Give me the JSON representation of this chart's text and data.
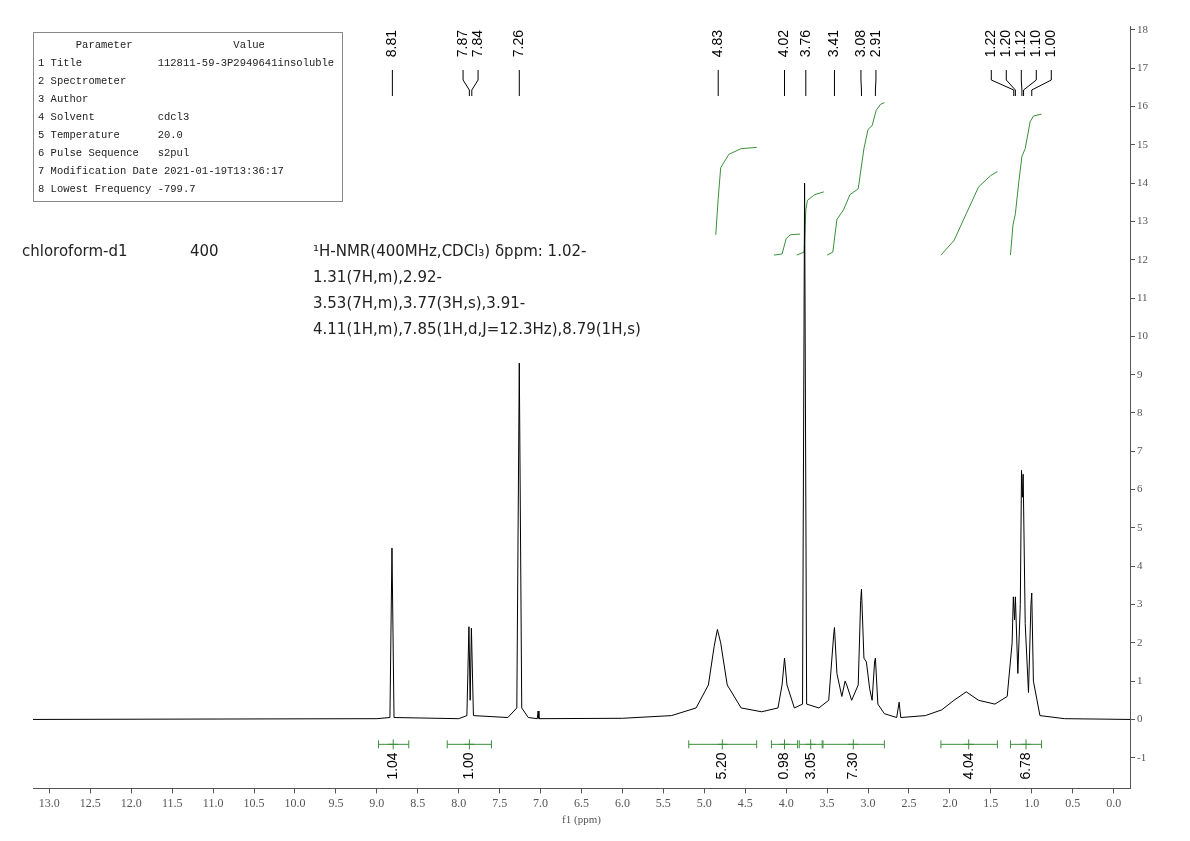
{
  "chart_data": {
    "type": "line",
    "xlabel": "f1 (ppm)",
    "xlim": [
      13.2,
      -0.2
    ],
    "xticks": [
      {
        "value": 13,
        "label": "13.0"
      },
      12.5,
      {
        "value": 12,
        "label": "12.0"
      },
      11.5,
      {
        "value": 11,
        "label": "11.0"
      },
      10.5,
      {
        "value": 10,
        "label": "10.0"
      },
      9.5,
      {
        "value": 9,
        "label": "9.0"
      },
      8.5,
      {
        "value": 8,
        "label": "8.0"
      },
      7.5,
      {
        "value": 7,
        "label": "7.0"
      },
      6.5,
      {
        "value": 6,
        "label": "6.0"
      },
      5.5,
      {
        "value": 5,
        "label": "5.0"
      },
      4.5,
      {
        "value": 4,
        "label": "4.0"
      },
      3.5,
      {
        "value": 3,
        "label": "3.0"
      },
      2.5,
      {
        "value": 2,
        "label": "2.0"
      },
      1.5,
      {
        "value": 1,
        "label": "1.0"
      },
      0.5,
      {
        "value": 0,
        "label": "0.0"
      }
    ],
    "ylim": [
      -1.8,
      18.1
    ],
    "yticks": [
      -1,
      0,
      1,
      2,
      3,
      4,
      5,
      6,
      7,
      8,
      9,
      10,
      11,
      12,
      13,
      14,
      15,
      16,
      17,
      18
    ],
    "grid": false,
    "legend": false,
    "marker": "none",
    "line_style": "solid",
    "series": [
      {
        "color": "#000000",
        "x": [
          13.2,
          9.0,
          8.84,
          8.815,
          8.79,
          8.0,
          7.9,
          7.875,
          7.86,
          7.845,
          7.82,
          7.4,
          7.29,
          7.26,
          7.23,
          7.15,
          7.04,
          7.03,
          7.02,
          6.0,
          5.4,
          5.1,
          4.95,
          4.88,
          4.84,
          4.8,
          4.72,
          4.55,
          4.3,
          4.1,
          4.05,
          4.02,
          3.99,
          3.9,
          3.8,
          3.775,
          3.75,
          3.6,
          3.48,
          3.42,
          3.41,
          3.38,
          3.32,
          3.28,
          3.26,
          3.2,
          3.12,
          3.09,
          3.08,
          3.05,
          3.02,
          2.98,
          2.95,
          2.92,
          2.91,
          2.88,
          2.8,
          2.65,
          2.62,
          2.6,
          2.3,
          2.1,
          1.95,
          1.8,
          1.65,
          1.45,
          1.3,
          1.24,
          1.225,
          1.21,
          1.2,
          1.17,
          1.14,
          1.125,
          1.115,
          1.105,
          1.08,
          1.04,
          1.01,
          1.0,
          0.98,
          0.9,
          0.6,
          -0.2
        ],
        "values": [
          0,
          0.02,
          0.05,
          4.47,
          0.05,
          0.02,
          0.1,
          2.42,
          0.5,
          2.38,
          0.1,
          0.05,
          0.3,
          9.3,
          0.3,
          0.05,
          0.02,
          0.22,
          0.02,
          0.03,
          0.1,
          0.3,
          0.9,
          1.9,
          2.35,
          2.0,
          0.9,
          0.3,
          0.2,
          0.3,
          0.9,
          1.6,
          0.9,
          0.3,
          0.4,
          14.0,
          0.4,
          0.3,
          0.5,
          2.2,
          2.4,
          1.2,
          0.6,
          1.0,
          0.9,
          0.5,
          0.9,
          3.1,
          3.4,
          1.6,
          1.5,
          0.8,
          0.5,
          1.5,
          1.6,
          0.4,
          0.15,
          0.05,
          0.45,
          0.05,
          0.1,
          0.25,
          0.5,
          0.72,
          0.5,
          0.4,
          0.6,
          2.0,
          3.2,
          2.6,
          3.2,
          1.2,
          3.0,
          6.5,
          5.8,
          6.4,
          2.5,
          0.7,
          3.0,
          3.3,
          1.0,
          0.1,
          0.02,
          0
        ]
      },
      {
        "color": "#3a8f3a",
        "x": [
          4.86,
          4.83,
          4.8,
          4.7,
          4.55,
          4.36
        ],
        "values": [
          12.65,
          13.6,
          14.4,
          14.75,
          14.9,
          14.93
        ]
      },
      {
        "color": "#3a8f3a",
        "x": [
          4.15,
          4.05,
          4.0,
          3.95,
          3.83
        ],
        "values": [
          12.12,
          12.15,
          12.55,
          12.65,
          12.67
        ]
      },
      {
        "color": "#3a8f3a",
        "x": [
          3.87,
          3.78,
          3.76,
          3.74,
          3.65,
          3.54
        ],
        "values": [
          12.12,
          12.2,
          13.3,
          13.55,
          13.7,
          13.77
        ]
      },
      {
        "color": "#3a8f3a",
        "x": [
          3.5,
          3.43,
          3.38,
          3.3,
          3.22,
          3.12,
          3.05,
          3.0,
          2.95,
          2.9,
          2.85,
          2.8
        ],
        "values": [
          12.12,
          12.2,
          13.05,
          13.3,
          13.7,
          13.85,
          14.9,
          15.4,
          15.5,
          15.9,
          16.05,
          16.1
        ]
      },
      {
        "color": "#3a8f3a",
        "x": [
          2.11,
          1.95,
          1.8,
          1.65,
          1.5,
          1.42
        ],
        "values": [
          12.12,
          12.5,
          13.2,
          13.9,
          14.2,
          14.3
        ]
      },
      {
        "color": "#3a8f3a",
        "x": [
          1.26,
          1.23,
          1.2,
          1.16,
          1.12,
          1.08,
          1.02,
          0.98,
          0.88
        ],
        "values": [
          12.12,
          12.9,
          13.2,
          14.0,
          14.7,
          14.9,
          15.6,
          15.75,
          15.8
        ]
      },
      {
        "type": "scatter",
        "marker": "cross",
        "color": "#3a8f3a",
        "x": [
          8.8,
          7.87,
          4.78,
          4.02,
          3.7,
          3.18,
          1.77,
          1.07
        ],
        "values": [
          -0.65,
          -0.65,
          -0.65,
          -0.65,
          -0.65,
          -0.65,
          -0.65,
          -0.65
        ],
        "xerrors": [
          [
            8.61,
            8.98
          ],
          [
            7.6,
            8.14
          ],
          [
            4.36,
            5.19
          ],
          [
            3.86,
            4.18
          ],
          [
            3.56,
            3.84
          ],
          [
            2.8,
            3.55
          ],
          [
            1.42,
            2.11
          ],
          [
            0.88,
            1.26
          ]
        ]
      }
    ],
    "annotations": [
      "      Parameter                Value",
      "1 Title            112811-59-3P2949641insoluble",
      "2 Spectrometer",
      "3 Author",
      "4 Solvent          cdcl3",
      "5 Temperature      20.0",
      "6 Pulse Sequence   s2pul",
      "7 Modification Date 2021-01-19T13:36:17",
      "8 Lowest Frequency -799.7",
      "chloroform-d1",
      "400",
      "¹H-NMR(400MHz,CDCl₃) δppm: 1.02-1.31(7H,m),2.92-3.53(7H,m),3.77(3H,s),3.91-4.11(1H,m),7.85(1H,d,J=12.3Hz),8.79(1H,s)",
      {
        "text": "8.81",
        "x": 8.81
      },
      {
        "text": "7.87",
        "x": 7.87
      },
      {
        "text": "7.84",
        "x": 7.84
      },
      {
        "text": "7.26",
        "x": 7.26
      },
      {
        "text": "4.83",
        "x": 4.83
      },
      {
        "text": "4.02",
        "x": 4.02
      },
      {
        "text": "3.76",
        "x": 3.76
      },
      {
        "text": "3.41",
        "x": 3.41
      },
      {
        "text": "3.08",
        "x": 3.08
      },
      {
        "text": "2.91",
        "x": 2.91
      },
      {
        "text": "1.22",
        "x": 1.22
      },
      {
        "text": "1.20",
        "x": 1.2
      },
      {
        "text": "1.12",
        "x": 1.12
      },
      {
        "text": "1.10",
        "x": 1.1
      },
      {
        "text": "1.00",
        "x": 1.0
      },
      {
        "text": "1.04",
        "x": 8.8,
        "y": -0.65
      },
      {
        "text": "1.00",
        "x": 7.87,
        "y": -0.65
      },
      {
        "text": "5.20",
        "x": 4.78,
        "y": -0.65
      },
      {
        "text": "0.98",
        "x": 4.02,
        "y": -0.65
      },
      {
        "text": "3.05",
        "x": 3.7,
        "y": -0.65
      },
      {
        "text": "7.30",
        "x": 3.18,
        "y": -0.65
      },
      {
        "text": "4.04",
        "x": 1.77,
        "y": -0.65
      },
      {
        "text": "6.78",
        "x": 1.07,
        "y": -0.65
      }
    ]
  }
}
